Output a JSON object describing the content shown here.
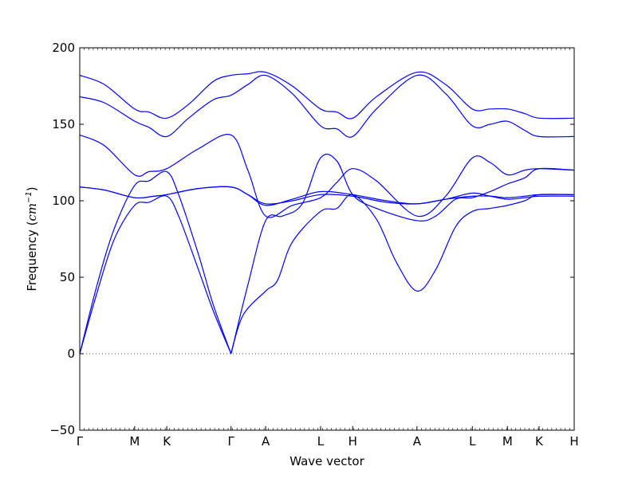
{
  "chart_data": {
    "type": "line",
    "title": "",
    "xlabel": "Wave vector",
    "ylabel": "Frequency ($cm^{-1}$)",
    "ylabel_parts": {
      "text": "Frequency (",
      "math": "cm",
      "sup": "−1",
      "close": ")"
    },
    "ylim": [
      -50,
      200
    ],
    "yticks": [
      -50,
      0,
      50,
      100,
      150,
      200
    ],
    "xlim": [
      0,
      1
    ],
    "high_symmetry_points": [
      {
        "label": "Γ",
        "x": 0.0
      },
      {
        "label": "M",
        "x": 0.111
      },
      {
        "label": "K",
        "x": 0.176
      },
      {
        "label": "Γ",
        "x": 0.306
      },
      {
        "label": "A",
        "x": 0.376
      },
      {
        "label": "L",
        "x": 0.487
      },
      {
        "label": "H",
        "x": 0.552
      },
      {
        "label": "A",
        "x": 0.682
      },
      {
        "label": "L",
        "x": 0.794
      },
      {
        "label": "M",
        "x": 0.865
      },
      {
        "label": "K",
        "x": 0.929
      },
      {
        "label": "H",
        "x": 1.0
      }
    ],
    "zero_line": {
      "y": 0,
      "style": "dotted"
    },
    "line_color": "#0000ff",
    "series": [
      {
        "values": [
          [
            0,
            0
          ],
          [
            0.035,
            40
          ],
          [
            0.07,
            75
          ],
          [
            0.111,
            97
          ],
          [
            0.14,
            99
          ],
          [
            0.176,
            103
          ],
          [
            0.2,
            90
          ],
          [
            0.24,
            55
          ],
          [
            0.27,
            28
          ],
          [
            0.306,
            0
          ]
        ]
      },
      {
        "values": [
          [
            0,
            0
          ],
          [
            0.035,
            45
          ],
          [
            0.07,
            82
          ],
          [
            0.111,
            110
          ],
          [
            0.14,
            113
          ],
          [
            0.176,
            119
          ],
          [
            0.2,
            104
          ],
          [
            0.24,
            65
          ],
          [
            0.27,
            32
          ],
          [
            0.306,
            0
          ]
        ]
      },
      {
        "values": [
          [
            0,
            109
          ],
          [
            0.05,
            107
          ],
          [
            0.111,
            102
          ],
          [
            0.15,
            103
          ],
          [
            0.176,
            104
          ],
          [
            0.24,
            108
          ],
          [
            0.306,
            109
          ],
          [
            0.34,
            104
          ],
          [
            0.376,
            98
          ],
          [
            0.43,
            100
          ],
          [
            0.487,
            104
          ],
          [
            0.552,
            103
          ],
          [
            0.62,
            99
          ],
          [
            0.682,
            98
          ],
          [
            0.74,
            101
          ],
          [
            0.794,
            103
          ],
          [
            0.83,
            103
          ],
          [
            0.865,
            102
          ],
          [
            0.9,
            103
          ],
          [
            0.929,
            104
          ],
          [
            1,
            104
          ]
        ]
      },
      {
        "values": [
          [
            0,
            109
          ],
          [
            0.05,
            107
          ],
          [
            0.111,
            102
          ],
          [
            0.15,
            103
          ],
          [
            0.176,
            104
          ],
          [
            0.24,
            108
          ],
          [
            0.306,
            109
          ],
          [
            0.34,
            104
          ],
          [
            0.376,
            97
          ],
          [
            0.43,
            101
          ],
          [
            0.487,
            106
          ],
          [
            0.552,
            104
          ],
          [
            0.62,
            100
          ],
          [
            0.682,
            98
          ],
          [
            0.74,
            101
          ],
          [
            0.794,
            105
          ],
          [
            0.83,
            103
          ],
          [
            0.865,
            101
          ],
          [
            0.9,
            102
          ],
          [
            0.929,
            103
          ],
          [
            1,
            103
          ]
        ]
      },
      {
        "values": [
          [
            0,
            143
          ],
          [
            0.05,
            136
          ],
          [
            0.111,
            117
          ],
          [
            0.14,
            119
          ],
          [
            0.176,
            121
          ],
          [
            0.24,
            134
          ],
          [
            0.306,
            143
          ],
          [
            0.34,
            120
          ],
          [
            0.376,
            90
          ],
          [
            0.43,
            97
          ],
          [
            0.487,
            102
          ],
          [
            0.52,
            112
          ],
          [
            0.552,
            121
          ],
          [
            0.6,
            113
          ],
          [
            0.682,
            90
          ],
          [
            0.74,
            103
          ],
          [
            0.794,
            128
          ],
          [
            0.83,
            125
          ],
          [
            0.865,
            117
          ],
          [
            0.9,
            120
          ],
          [
            0.929,
            121
          ],
          [
            1,
            120
          ]
        ]
      },
      {
        "values": [
          [
            0.306,
            0
          ],
          [
            0.33,
            25
          ],
          [
            0.376,
            41
          ],
          [
            0.4,
            48
          ],
          [
            0.43,
            73
          ],
          [
            0.487,
            93
          ],
          [
            0.52,
            95
          ],
          [
            0.552,
            104
          ],
          [
            0.6,
            88
          ],
          [
            0.64,
            60
          ],
          [
            0.682,
            41
          ],
          [
            0.72,
            55
          ],
          [
            0.76,
            83
          ],
          [
            0.794,
            93
          ],
          [
            0.83,
            95
          ],
          [
            0.865,
            97
          ],
          [
            0.9,
            100
          ],
          [
            0.929,
            104
          ],
          [
            1,
            104
          ]
        ]
      },
      {
        "values": [
          [
            0.306,
            0
          ],
          [
            0.34,
            45
          ],
          [
            0.376,
            87
          ],
          [
            0.41,
            90
          ],
          [
            0.45,
            98
          ],
          [
            0.487,
            128
          ],
          [
            0.52,
            126
          ],
          [
            0.552,
            104
          ],
          [
            0.6,
            95
          ],
          [
            0.682,
            87
          ],
          [
            0.72,
            90
          ],
          [
            0.76,
            101
          ],
          [
            0.794,
            102
          ],
          [
            0.83,
            106
          ],
          [
            0.865,
            111
          ],
          [
            0.9,
            115
          ],
          [
            0.929,
            121
          ],
          [
            1,
            120
          ]
        ]
      },
      {
        "values": [
          [
            0,
            168
          ],
          [
            0.05,
            164
          ],
          [
            0.111,
            152
          ],
          [
            0.14,
            148
          ],
          [
            0.176,
            142
          ],
          [
            0.22,
            154
          ],
          [
            0.27,
            166
          ],
          [
            0.306,
            169
          ],
          [
            0.34,
            176
          ],
          [
            0.376,
            182
          ],
          [
            0.43,
            170
          ],
          [
            0.487,
            149
          ],
          [
            0.52,
            147
          ],
          [
            0.552,
            142
          ],
          [
            0.6,
            160
          ],
          [
            0.682,
            182
          ],
          [
            0.74,
            170
          ],
          [
            0.794,
            149
          ],
          [
            0.83,
            150
          ],
          [
            0.865,
            152
          ],
          [
            0.9,
            146
          ],
          [
            0.929,
            142
          ],
          [
            1,
            142
          ]
        ]
      },
      {
        "values": [
          [
            0,
            182
          ],
          [
            0.05,
            176
          ],
          [
            0.111,
            160
          ],
          [
            0.14,
            158
          ],
          [
            0.176,
            154
          ],
          [
            0.22,
            163
          ],
          [
            0.27,
            178
          ],
          [
            0.306,
            182
          ],
          [
            0.34,
            183
          ],
          [
            0.376,
            184
          ],
          [
            0.43,
            175
          ],
          [
            0.487,
            160
          ],
          [
            0.52,
            158
          ],
          [
            0.552,
            154
          ],
          [
            0.6,
            168
          ],
          [
            0.682,
            184
          ],
          [
            0.74,
            176
          ],
          [
            0.794,
            160
          ],
          [
            0.83,
            160
          ],
          [
            0.865,
            160
          ],
          [
            0.9,
            157
          ],
          [
            0.929,
            154
          ],
          [
            1,
            154
          ]
        ]
      }
    ]
  }
}
